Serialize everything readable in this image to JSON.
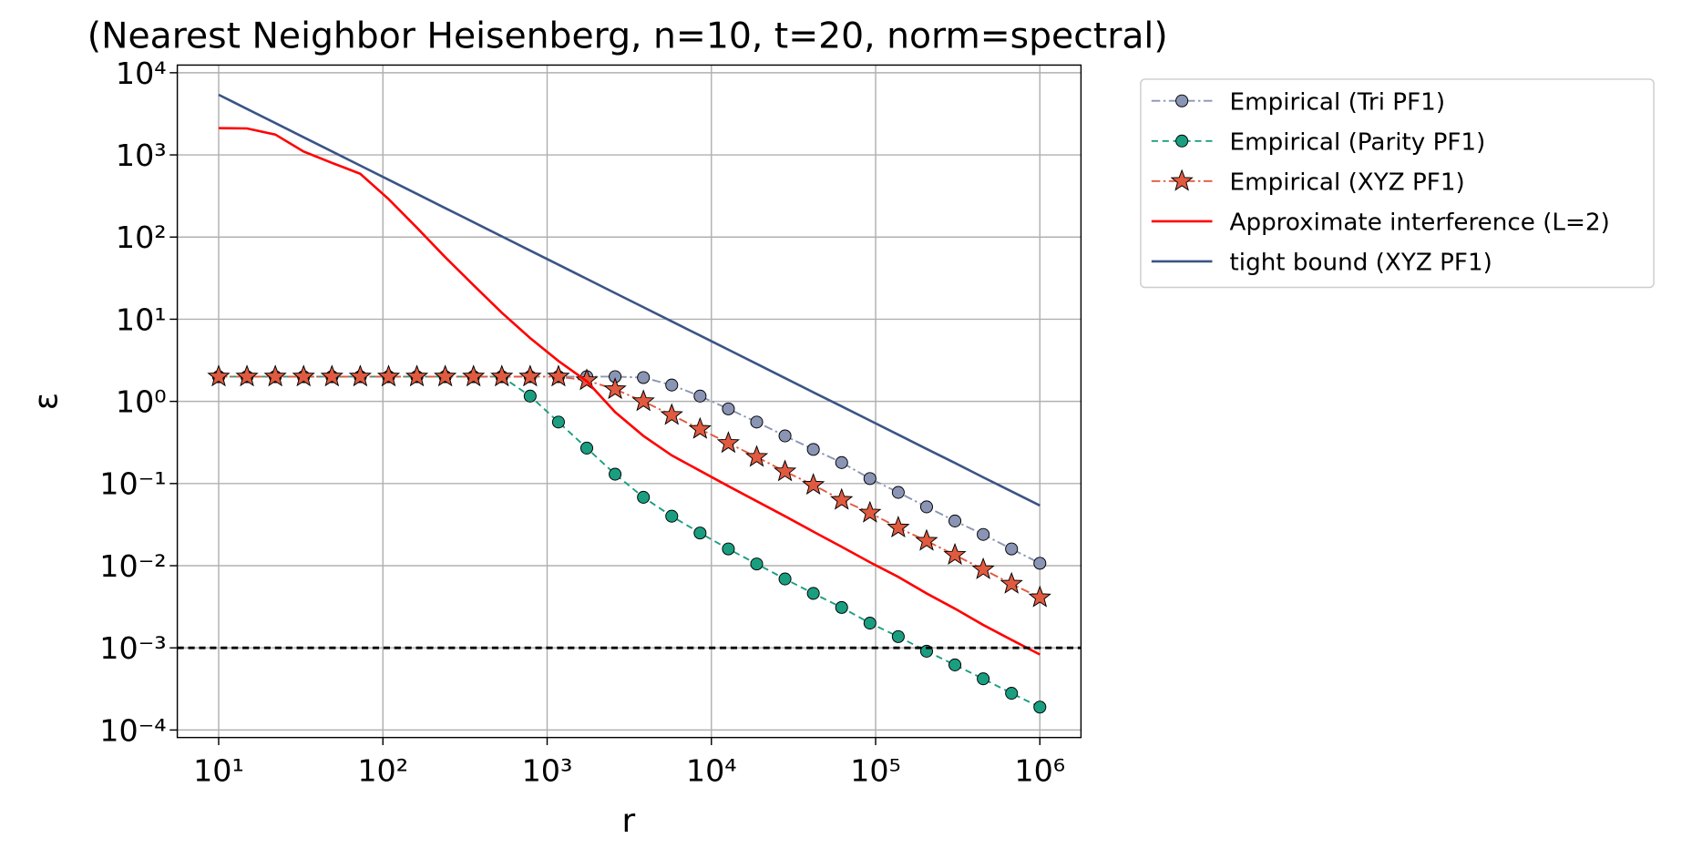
{
  "chart_data": {
    "type": "line",
    "title": "(Nearest Neighbor Heisenberg, n=10, t=20, norm=spectral)",
    "xlabel": "r",
    "ylabel": "ε",
    "log_x": true,
    "log_y": true,
    "grid": true,
    "legend_position": "outside-right",
    "xlim": [
      5.6,
      1780000
    ],
    "ylim": [
      8.1e-05,
      12400
    ],
    "xticks": [
      {
        "value": 10,
        "label": "10¹"
      },
      {
        "value": 100,
        "label": "10²"
      },
      {
        "value": 1000,
        "label": "10³"
      },
      {
        "value": 10000,
        "label": "10⁴"
      },
      {
        "value": 100000,
        "label": "10⁵"
      },
      {
        "value": 1000000,
        "label": "10⁶"
      }
    ],
    "yticks": [
      {
        "value": 0.0001,
        "label": "10⁻⁴"
      },
      {
        "value": 0.001,
        "label": "10⁻³"
      },
      {
        "value": 0.01,
        "label": "10⁻²"
      },
      {
        "value": 0.1,
        "label": "10⁻¹"
      },
      {
        "value": 1,
        "label": "10⁰"
      },
      {
        "value": 10,
        "label": "10¹"
      },
      {
        "value": 100,
        "label": "10²"
      },
      {
        "value": 1000,
        "label": "10³"
      },
      {
        "value": 10000,
        "label": "10⁴"
      }
    ],
    "x": [
      10,
      14.87,
      22.12,
      32.9,
      48.94,
      72.79,
      108.3,
      161,
      239.5,
      356.2,
      529.8,
      788,
      1172,
      1743,
      2593,
      3857,
      5736,
      8532,
      12690,
      18874,
      28072,
      41753,
      62102,
      92367,
      137382,
      204336,
      303920,
      452035,
      672336,
      1000000
    ],
    "series": [
      {
        "name": "Empirical (Tri PF1)",
        "color": "#8a95b5",
        "linestyle": "dashdot",
        "marker": "circle",
        "values": [
          2,
          2,
          2,
          2,
          2,
          2,
          2,
          2,
          2,
          2,
          2,
          2,
          2,
          2,
          2,
          1.95,
          1.58,
          1.16,
          0.81,
          0.56,
          0.38,
          0.26,
          0.18,
          0.115,
          0.078,
          0.052,
          0.035,
          0.024,
          0.016,
          0.0107
        ]
      },
      {
        "name": "Empirical (Parity PF1)",
        "color": "#1a9e80",
        "linestyle": "dashed",
        "marker": "circle",
        "values": [
          2,
          2,
          2,
          2,
          2,
          2,
          2,
          2,
          2,
          2,
          2,
          1.16,
          0.56,
          0.27,
          0.13,
          0.068,
          0.04,
          0.025,
          0.016,
          0.0105,
          0.0069,
          0.0046,
          0.0031,
          0.002,
          0.00137,
          0.00091,
          0.00062,
          0.00042,
          0.00028,
          0.00019
        ]
      },
      {
        "name": "Empirical (XYZ PF1)",
        "color": "#e05a40",
        "linestyle": "dashdot",
        "marker": "star",
        "values": [
          2,
          2,
          2,
          2,
          2,
          2,
          2,
          2,
          2,
          2,
          2,
          2,
          2,
          1.8,
          1.4,
          1,
          0.68,
          0.46,
          0.31,
          0.21,
          0.14,
          0.096,
          0.063,
          0.044,
          0.029,
          0.02,
          0.0135,
          0.009,
          0.006,
          0.0041
        ]
      },
      {
        "name": "Approximate interference (L=2)",
        "color": "#ff0000",
        "linestyle": "solid",
        "marker": "none",
        "values": [
          2120,
          2100,
          1770,
          1100,
          800,
          590,
          290,
          130,
          57,
          26,
          12,
          5.9,
          3.1,
          1.76,
          0.74,
          0.38,
          0.22,
          0.143,
          0.093,
          0.061,
          0.04,
          0.026,
          0.017,
          0.011,
          0.0073,
          0.0046,
          0.003,
          0.0019,
          0.00125,
          0.00083
        ]
      },
      {
        "name": "tight bound (XYZ PF1)",
        "color": "#3b5486",
        "linestyle": "solid",
        "marker": "none",
        "values": [
          5400,
          3631,
          2441,
          1641,
          1103,
          741.9,
          498.6,
          335.4,
          225.5,
          151.6,
          101.9,
          68.5,
          46.1,
          31,
          20.8,
          14,
          9.41,
          6.33,
          4.26,
          2.86,
          1.92,
          1.29,
          0.87,
          0.585,
          0.393,
          0.264,
          0.178,
          0.119,
          0.0803,
          0.054
        ]
      }
    ],
    "reference_line": {
      "value": 0.001,
      "color": "#000000",
      "linestyle": "dashed"
    }
  }
}
